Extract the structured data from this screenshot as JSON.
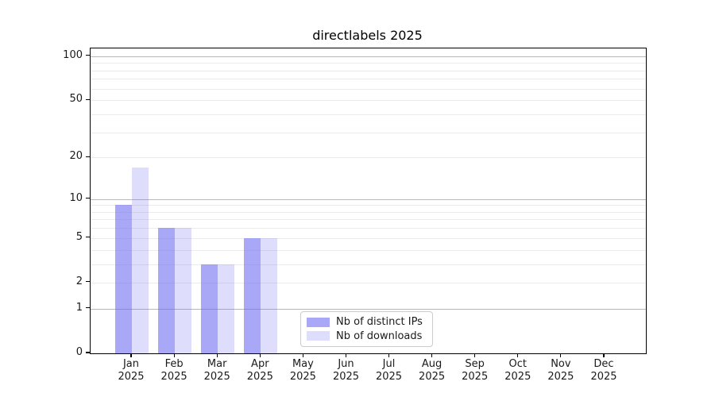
{
  "chart_data": {
    "type": "bar",
    "title": "directlabels 2025",
    "categories": [
      {
        "month": "Jan",
        "year": "2025"
      },
      {
        "month": "Feb",
        "year": "2025"
      },
      {
        "month": "Mar",
        "year": "2025"
      },
      {
        "month": "Apr",
        "year": "2025"
      },
      {
        "month": "May",
        "year": "2025"
      },
      {
        "month": "Jun",
        "year": "2025"
      },
      {
        "month": "Jul",
        "year": "2025"
      },
      {
        "month": "Aug",
        "year": "2025"
      },
      {
        "month": "Sep",
        "year": "2025"
      },
      {
        "month": "Oct",
        "year": "2025"
      },
      {
        "month": "Nov",
        "year": "2025"
      },
      {
        "month": "Dec",
        "year": "2025"
      }
    ],
    "series": [
      {
        "key": "distinct-ips",
        "name": "Nb of distinct IPs",
        "color": "rgba(105,105,240,0.58)",
        "values": [
          9,
          6,
          3,
          5,
          0,
          0,
          0,
          0,
          0,
          0,
          0,
          0
        ]
      },
      {
        "key": "downloads",
        "name": "Nb of downloads",
        "color": "rgba(105,105,240,0.22)",
        "values": [
          17,
          6,
          3,
          5,
          0,
          0,
          0,
          0,
          0,
          0,
          0,
          0
        ]
      }
    ],
    "yscale": "log1p",
    "ylim": [
      0,
      113
    ],
    "yticks": [
      0,
      1,
      2,
      5,
      10,
      20,
      50,
      100
    ],
    "grid": {
      "major": [
        1,
        10,
        100
      ],
      "minor": [
        2,
        3,
        4,
        5,
        6,
        7,
        8,
        9,
        20,
        30,
        40,
        50,
        60,
        70,
        80,
        90
      ]
    },
    "legend_position": "lower center",
    "colors": {
      "grid_major": "#b8b8b8",
      "grid_minor": "#ebebeb",
      "spine": "#000000",
      "text": "#1a1a1a",
      "legend_border": "#cccccc"
    }
  }
}
